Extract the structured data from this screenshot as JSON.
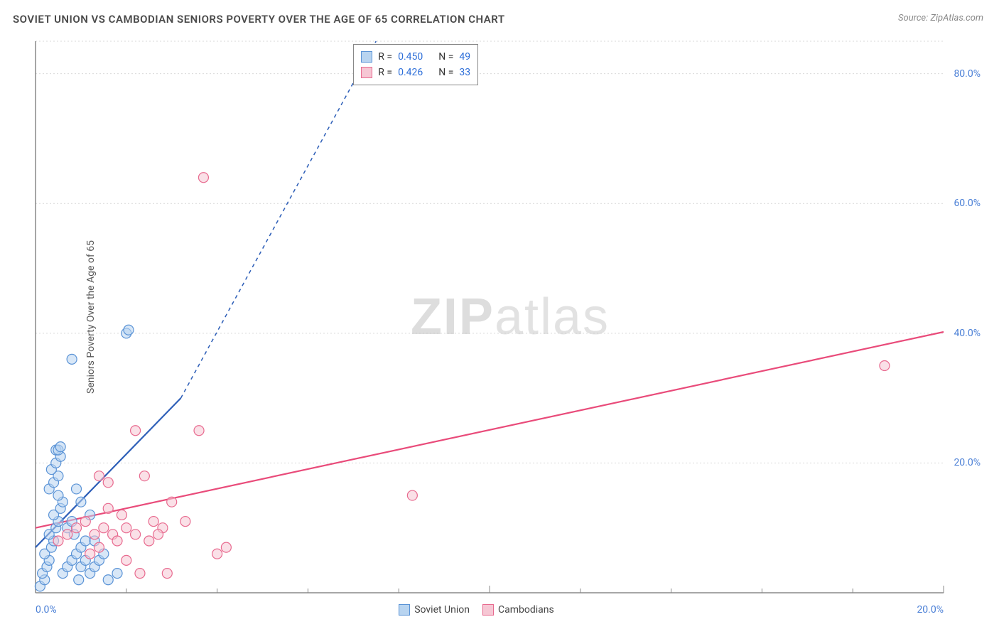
{
  "title": "SOVIET UNION VS CAMBODIAN SENIORS POVERTY OVER THE AGE OF 65 CORRELATION CHART",
  "source_label": "Source: ",
  "source_value": "ZipAtlas.com",
  "ylabel": "Seniors Poverty Over the Age of 65",
  "watermark_1": "ZIP",
  "watermark_2": "atlas",
  "chart": {
    "type": "scatter",
    "background_color": "#ffffff",
    "grid_color": "#d9d9d9",
    "axis_color": "#888888",
    "tick_label_color": "#4a7fd6",
    "xlim": [
      0,
      20
    ],
    "ylim": [
      0,
      85
    ],
    "x_ticks": [
      0,
      10,
      20
    ],
    "x_tick_labels": [
      "0.0%",
      "",
      "20.0%"
    ],
    "x_minor_ticks": [
      2,
      4,
      6,
      8,
      12,
      14,
      16,
      18
    ],
    "y_ticks": [
      20,
      40,
      60,
      80
    ],
    "y_tick_labels": [
      "20.0%",
      "40.0%",
      "60.0%",
      "80.0%"
    ],
    "marker_radius": 7,
    "marker_stroke_width": 1.2,
    "series": [
      {
        "name": "Soviet Union",
        "fill": "#b8d4f0",
        "stroke": "#5a93d6",
        "fill_opacity": 0.55,
        "R": "0.450",
        "N": "49",
        "trend": {
          "x1": 0,
          "y1": 7,
          "x2": 3.2,
          "y2": 30,
          "dash_x2": 7.5,
          "dash_y2": 85,
          "color": "#2e5fb8",
          "width": 2.2
        },
        "points": [
          [
            0.1,
            1
          ],
          [
            0.2,
            2
          ],
          [
            0.15,
            3
          ],
          [
            0.25,
            4
          ],
          [
            0.3,
            5
          ],
          [
            0.2,
            6
          ],
          [
            0.35,
            7
          ],
          [
            0.4,
            8
          ],
          [
            0.3,
            9
          ],
          [
            0.45,
            10
          ],
          [
            0.5,
            11
          ],
          [
            0.4,
            12
          ],
          [
            0.55,
            13
          ],
          [
            0.6,
            14
          ],
          [
            0.5,
            15
          ],
          [
            0.3,
            16
          ],
          [
            0.4,
            17
          ],
          [
            0.5,
            18
          ],
          [
            0.35,
            19
          ],
          [
            0.45,
            20
          ],
          [
            0.55,
            21
          ],
          [
            0.45,
            22
          ],
          [
            0.6,
            3
          ],
          [
            0.7,
            4
          ],
          [
            0.8,
            5
          ],
          [
            0.9,
            6
          ],
          [
            1.0,
            7
          ],
          [
            1.1,
            8
          ],
          [
            0.85,
            9
          ],
          [
            0.95,
            2
          ],
          [
            1.2,
            3
          ],
          [
            1.3,
            4
          ],
          [
            1.4,
            5
          ],
          [
            0.7,
            10
          ],
          [
            0.8,
            11
          ],
          [
            1.0,
            4
          ],
          [
            1.1,
            5
          ],
          [
            1.6,
            2
          ],
          [
            1.8,
            3
          ],
          [
            1.5,
            6
          ],
          [
            1.3,
            8
          ],
          [
            2.0,
            40
          ],
          [
            2.05,
            40.5
          ],
          [
            0.8,
            36
          ],
          [
            0.5,
            22
          ],
          [
            0.55,
            22.5
          ],
          [
            1.2,
            12
          ],
          [
            1.0,
            14
          ],
          [
            0.9,
            16
          ]
        ]
      },
      {
        "name": "Cambodians",
        "fill": "#f6c7d4",
        "stroke": "#e86a8f",
        "fill_opacity": 0.55,
        "R": "0.426",
        "N": "33",
        "trend": {
          "x1": 0,
          "y1": 10,
          "x2": 20,
          "y2": 40.2,
          "color": "#e94b7a",
          "width": 2.2
        },
        "points": [
          [
            0.5,
            8
          ],
          [
            0.7,
            9
          ],
          [
            0.9,
            10
          ],
          [
            1.1,
            11
          ],
          [
            1.3,
            9
          ],
          [
            1.5,
            10
          ],
          [
            1.4,
            18
          ],
          [
            1.6,
            17
          ],
          [
            1.7,
            9
          ],
          [
            1.8,
            8
          ],
          [
            2.0,
            10
          ],
          [
            2.2,
            9
          ],
          [
            2.4,
            18
          ],
          [
            2.3,
            3
          ],
          [
            2.0,
            5
          ],
          [
            1.2,
            6
          ],
          [
            1.4,
            7
          ],
          [
            2.6,
            11
          ],
          [
            2.8,
            10
          ],
          [
            2.5,
            8
          ],
          [
            3.0,
            14
          ],
          [
            2.2,
            25
          ],
          [
            3.6,
            25
          ],
          [
            4.0,
            6
          ],
          [
            4.2,
            7
          ],
          [
            3.3,
            11
          ],
          [
            2.7,
            9
          ],
          [
            2.9,
            3
          ],
          [
            8.3,
            15
          ],
          [
            3.7,
            64
          ],
          [
            18.7,
            35
          ],
          [
            1.9,
            12
          ],
          [
            1.6,
            13
          ]
        ]
      }
    ]
  },
  "legend_top": {
    "R_label": "R = ",
    "N_label": "N = "
  },
  "legend_bottom": {
    "items": [
      "Soviet Union",
      "Cambodians"
    ]
  }
}
